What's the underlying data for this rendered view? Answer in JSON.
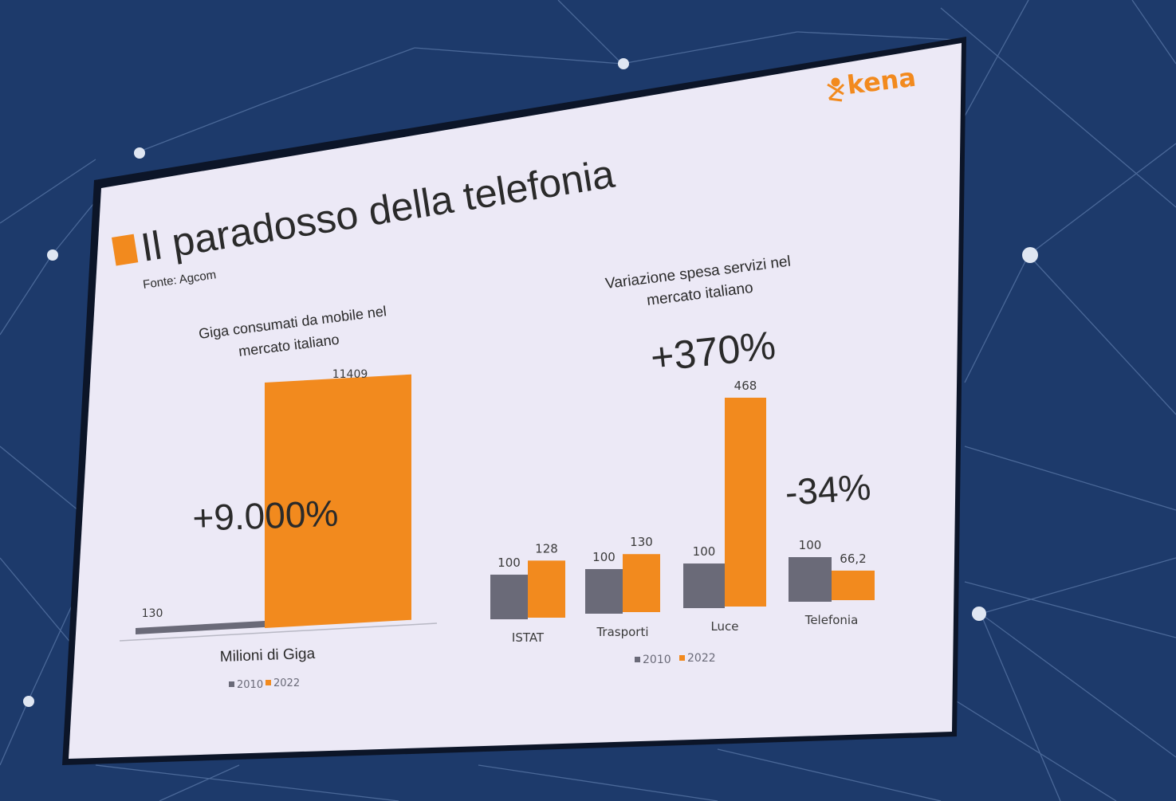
{
  "slide": {
    "title": "Il paradosso della telefonia",
    "source": "Fonte: Agcom",
    "logo_text": "kena",
    "accent_color": "#f28a1e",
    "series_2010_color": "#6a6a78",
    "series_2022_color": "#f28a1e"
  },
  "left_chart": {
    "title_line1": "Giga consumati da mobile nel",
    "title_line2": "mercato italiano",
    "highlight": "+9.000%",
    "xlabel": "Milioni di Giga",
    "legend": [
      "2010",
      "2022"
    ]
  },
  "right_chart": {
    "title_line1": "Variazione spesa servizi nel",
    "title_line2": "mercato italiano",
    "highlight_up": "+370%",
    "highlight_down": "-34%",
    "legend": [
      "2010",
      "2022"
    ]
  },
  "chart_data": [
    {
      "type": "bar",
      "title": "Giga consumati da mobile nel mercato italiano",
      "xlabel": "Milioni di Giga",
      "categories": [
        "Milioni di Giga"
      ],
      "series": [
        {
          "name": "2010",
          "values": [
            130
          ]
        },
        {
          "name": "2022",
          "values": [
            11409
          ]
        }
      ],
      "data_labels": [
        "130",
        "11409"
      ],
      "legend_position": "bottom"
    },
    {
      "type": "bar",
      "title": "Variazione spesa servizi nel mercato italiano",
      "categories": [
        "ISTAT",
        "Trasporti",
        "Luce",
        "Telefonia"
      ],
      "series": [
        {
          "name": "2010",
          "values": [
            100,
            100,
            100,
            100
          ]
        },
        {
          "name": "2022",
          "values": [
            128,
            130,
            468,
            66.2
          ]
        }
      ],
      "data_labels_2010": [
        "100",
        "100",
        "100",
        "100"
      ],
      "data_labels_2022": [
        "128",
        "130",
        "468",
        "66,2"
      ],
      "legend_position": "bottom"
    }
  ]
}
